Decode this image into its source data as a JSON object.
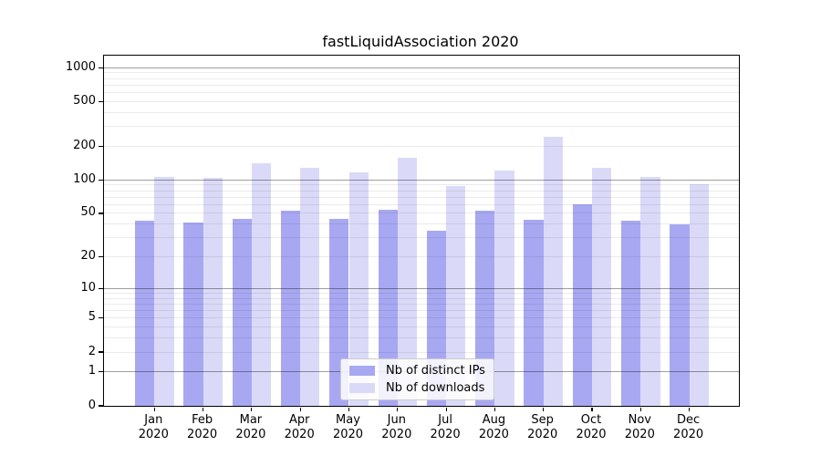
{
  "title": "fastLiquidAssociation 2020",
  "colors": {
    "ips_bar": "#a8a8f2",
    "downloads_bar": "#dadaf8",
    "grid_major": "rgba(0,0,0,0.38)",
    "grid_minor": "rgba(0,0,0,0.08)",
    "axis": "#000000",
    "legend_border": "#cccccc",
    "legend_bg": "rgba(255,255,255,0.85)"
  },
  "legend": {
    "items": [
      {
        "label": "Nb of distinct IPs",
        "series": "ips"
      },
      {
        "label": "Nb of downloads",
        "series": "downloads"
      }
    ]
  },
  "x_axis": {
    "months": [
      "Jan",
      "Feb",
      "Mar",
      "Apr",
      "May",
      "Jun",
      "Jul",
      "Aug",
      "Sep",
      "Oct",
      "Nov",
      "Dec"
    ],
    "year": "2020"
  },
  "y_axis": {
    "tick_values": [
      0,
      1,
      2,
      5,
      10,
      20,
      50,
      100,
      200,
      500,
      1000
    ]
  },
  "chart_data": {
    "type": "bar",
    "title": "fastLiquidAssociation 2020",
    "categories": [
      "Jan 2020",
      "Feb 2020",
      "Mar 2020",
      "Apr 2020",
      "May 2020",
      "Jun 2020",
      "Jul 2020",
      "Aug 2020",
      "Sep 2020",
      "Oct 2020",
      "Nov 2020",
      "Dec 2020"
    ],
    "series": [
      {
        "name": "Nb of distinct IPs",
        "values": [
          43,
          41,
          45,
          53,
          45,
          54,
          35,
          53,
          44,
          60,
          43,
          40
        ]
      },
      {
        "name": "Nb of downloads",
        "values": [
          107,
          104,
          142,
          128,
          117,
          158,
          88,
          122,
          245,
          128,
          107,
          92
        ]
      }
    ],
    "y_scale": "log1p",
    "y_ticks": [
      0,
      1,
      2,
      5,
      10,
      20,
      50,
      100,
      200,
      500,
      1000
    ],
    "ylim": [
      0,
      1280
    ],
    "grid": true,
    "legend_position": "lower center",
    "xlabel": "",
    "ylabel": ""
  }
}
